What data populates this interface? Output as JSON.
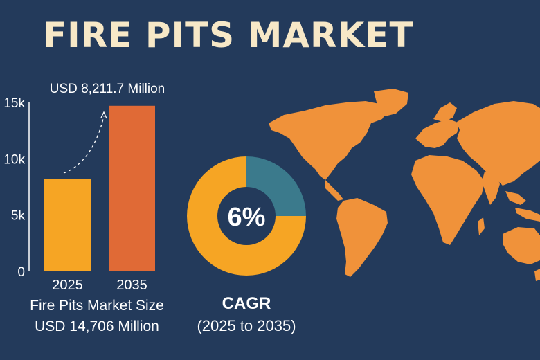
{
  "title": "FIRE PITS MARKET",
  "chart_data": [
    {
      "type": "bar",
      "categories": [
        "2025",
        "2035"
      ],
      "values": [
        8211.7,
        14706
      ],
      "value_label": "USD 8,211.7 Million",
      "ylim": [
        0,
        15000
      ],
      "yticks": [
        "0",
        "5k",
        "10k",
        "15k"
      ],
      "caption": "Fire Pits Market Size",
      "caption_value": "USD 14,706 Million",
      "colors": [
        "#f6a524",
        "#e06a36"
      ],
      "grid": false
    },
    {
      "type": "pie",
      "style": "donut",
      "center_label": "6%",
      "label": "CAGR",
      "sublabel": "(2025 to 2035)",
      "slices": [
        {
          "value": 25,
          "color": "#3b7a8c"
        },
        {
          "value": 75,
          "color": "#f6a524"
        }
      ]
    }
  ],
  "map": {
    "color": "#f0923a",
    "icon": "world-map-icon"
  }
}
